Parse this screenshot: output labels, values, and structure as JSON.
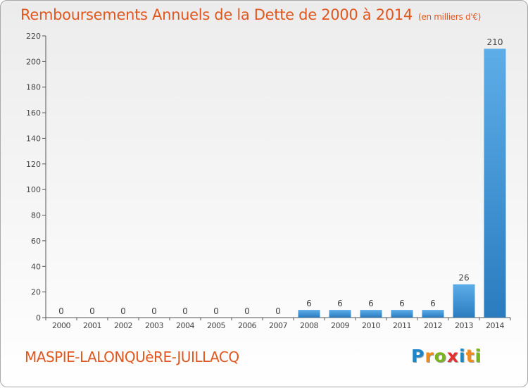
{
  "title": "Remboursements Annuels de la Dette de 2000 à 2014",
  "unit": "(en milliers d'€)",
  "commune": "MASPIE-LALONQUèRE-JUILLACQ",
  "logo": {
    "letters": [
      "P",
      "r",
      "o",
      "x",
      "i",
      "t",
      "i"
    ],
    "colors": [
      "#1c86c8",
      "#f08a1c",
      "#7ab51d",
      "#e5302e",
      "#1c86c8",
      "#f08a1c",
      "#7ab51d"
    ]
  },
  "colors": {
    "accent": "#e0581f",
    "bar_light": "#5dade8",
    "bar_dark": "#2a7cbf",
    "axis": "#555555"
  },
  "chart_data": {
    "type": "bar",
    "title": "Remboursements Annuels de la Dette de 2000 à 2014",
    "ylabel": "en milliers d'€",
    "xlabel": "",
    "categories": [
      "2000",
      "2001",
      "2002",
      "2003",
      "2004",
      "2005",
      "2006",
      "2007",
      "2008",
      "2009",
      "2010",
      "2011",
      "2012",
      "2013",
      "2014"
    ],
    "values": [
      0,
      0,
      0,
      0,
      0,
      0,
      0,
      0,
      6,
      6,
      6,
      6,
      6,
      26,
      210
    ],
    "ylim": [
      0,
      220
    ],
    "yticks": [
      0,
      20,
      40,
      60,
      80,
      100,
      120,
      140,
      160,
      180,
      200,
      220
    ],
    "grid": false,
    "data_labels": true
  }
}
